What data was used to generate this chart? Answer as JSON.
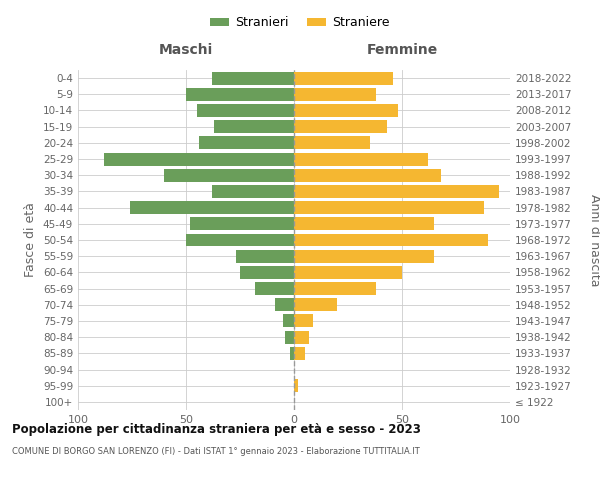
{
  "age_groups": [
    "100+",
    "95-99",
    "90-94",
    "85-89",
    "80-84",
    "75-79",
    "70-74",
    "65-69",
    "60-64",
    "55-59",
    "50-54",
    "45-49",
    "40-44",
    "35-39",
    "30-34",
    "25-29",
    "20-24",
    "15-19",
    "10-14",
    "5-9",
    "0-4"
  ],
  "birth_years": [
    "≤ 1922",
    "1923-1927",
    "1928-1932",
    "1933-1937",
    "1938-1942",
    "1943-1947",
    "1948-1952",
    "1953-1957",
    "1958-1962",
    "1963-1967",
    "1968-1972",
    "1973-1977",
    "1978-1982",
    "1983-1987",
    "1988-1992",
    "1993-1997",
    "1998-2002",
    "2003-2007",
    "2008-2012",
    "2013-2017",
    "2018-2022"
  ],
  "maschi": [
    0,
    0,
    0,
    2,
    4,
    5,
    9,
    18,
    25,
    27,
    50,
    48,
    76,
    38,
    60,
    88,
    44,
    37,
    45,
    50,
    38
  ],
  "femmine": [
    0,
    2,
    0,
    5,
    7,
    9,
    20,
    38,
    50,
    65,
    90,
    65,
    88,
    95,
    68,
    62,
    35,
    43,
    48,
    38,
    46
  ],
  "color_maschi": "#6a9e5a",
  "color_femmine": "#f5b731",
  "title_main": "Popolazione per cittadinanza straniera per età e sesso - 2023",
  "title_sub": "COMUNE DI BORGO SAN LORENZO (FI) - Dati ISTAT 1° gennaio 2023 - Elaborazione TUTTITALIA.IT",
  "label_maschi": "Stranieri",
  "label_femmine": "Straniere",
  "label_left": "Maschi",
  "label_right": "Femmine",
  "ylabel_left": "Fasce di età",
  "ylabel_right": "Anni di nascita",
  "xlim": 100,
  "background_color": "#ffffff",
  "grid_color": "#cccccc"
}
